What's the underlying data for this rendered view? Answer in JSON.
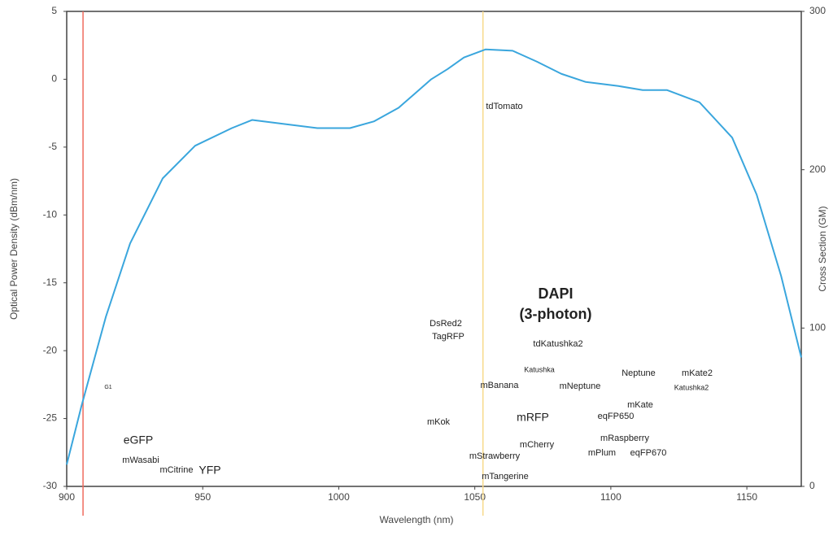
{
  "chart_data": {
    "type": "line",
    "xlabel": "Wavelength (nm)",
    "ylabel": "Optical Power Density (dBm/nm)",
    "y2label": "Cross Section (GM)",
    "xlim": [
      900,
      1170
    ],
    "xticks": [
      900,
      950,
      1000,
      1050,
      1100,
      1150
    ],
    "ylim": [
      -30,
      5
    ],
    "yticks": [
      -30,
      -25,
      -20,
      -15,
      -10,
      -5,
      0,
      5
    ],
    "y2lim": [
      0,
      300
    ],
    "y2ticks": [
      0,
      100,
      200,
      300
    ],
    "series": [
      {
        "color": "#3aa6dd",
        "x": [
          900,
          905.4,
          914.4,
          923.3,
          935.3,
          947.2,
          960.7,
          968.2,
          980.1,
          992.1,
          1004.1,
          1013,
          1022,
          1028,
          1034,
          1040,
          1046,
          1054,
          1063.9,
          1072.8,
          1081.8,
          1090.8,
          1102.8,
          1111.7,
          1120.7,
          1132.6,
          1144.6,
          1153.6,
          1162.6,
          1170
        ],
        "values": [
          -28.4,
          -24.1,
          -17.5,
          -12.1,
          -7.3,
          -4.9,
          -3.6,
          -3.0,
          -3.3,
          -3.6,
          -3.6,
          -3.1,
          -2.1,
          -1.05,
          0.0,
          0.75,
          1.6,
          2.2,
          2.1,
          1.3,
          0.4,
          -0.2,
          -0.5,
          -0.8,
          -0.8,
          -1.7,
          -4.3,
          -8.5,
          -14.5,
          -20.5
        ]
      }
    ],
    "vlines": [
      {
        "x": 906,
        "color": "#f06a5e"
      },
      {
        "x": 1053,
        "color": "#f7d98a"
      }
    ],
    "annotations": [
      "tdTomato",
      "DsRed2",
      "TagRFP",
      "DAPI",
      "(3-photon)",
      "tdKatushka2",
      "Katushka",
      "mBanana",
      "mNeptune",
      "Neptune",
      "mKate2",
      "Katushka2",
      "mKate",
      "eqFP650",
      "mKok",
      "mRFP",
      "eGFP",
      "mWasabi",
      "mCitrine",
      "YFP",
      "mCherry",
      "mRaspberry",
      "mStrawberry",
      "mPlum",
      "eqFP670",
      "mTangerine",
      "G1"
    ]
  }
}
